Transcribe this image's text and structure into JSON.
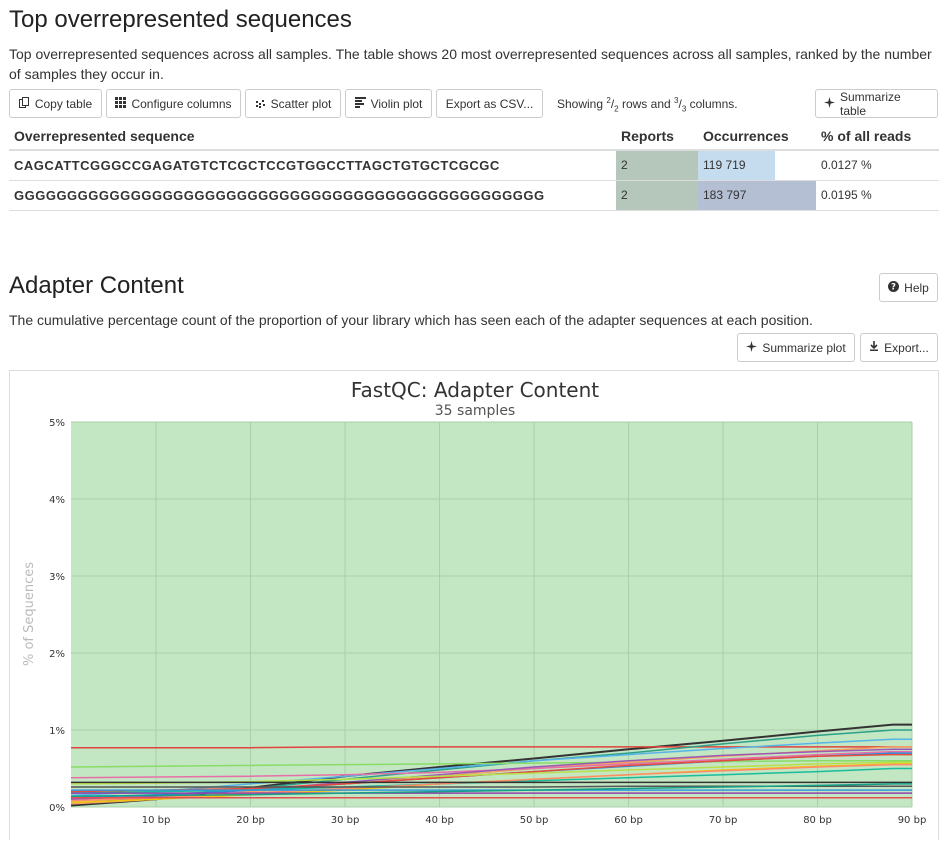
{
  "overrep": {
    "title": "Top overrepresented sequences",
    "description": "Top overrepresented sequences across all samples. The table shows 20 most overrepresented sequences across all samples, ranked by the number of samples they occur in.",
    "buttons": {
      "copy": "Copy table",
      "configure": "Configure columns",
      "scatter": "Scatter plot",
      "violin": "Violin plot",
      "export_csv": "Export as CSV...",
      "summarize": "Summarize table"
    },
    "showing": {
      "prefix": "Showing",
      "rows_num": "2",
      "rows_den": "2",
      "rows_word": "rows and",
      "cols_num": "3",
      "cols_den": "3",
      "cols_word": "columns."
    },
    "columns": [
      "Overrepresented sequence",
      "Reports",
      "Occurrences",
      "% of all reads"
    ],
    "rows": [
      {
        "sequence": "CAGCATTCGGGCCGAGATGTCTCGCTCCGTGGCCTTAGCTGTGCTCGCGC",
        "reports": "2",
        "occurrences": "119 719",
        "occ_fraction": 0.65,
        "pct": "0.0127 %"
      },
      {
        "sequence": "GGGGGGGGGGGGGGGGGGGGGGGGGGGGGGGGGGGGGGGGGGGGGGGGGG",
        "reports": "2",
        "occurrences": "183 797",
        "occ_fraction": 1.0,
        "pct": "0.0195 %"
      }
    ]
  },
  "adapter": {
    "title": "Adapter Content",
    "description": "The cumulative percentage count of the proportion of your library which has seen each of the adapter sequences at each position.",
    "help_label": "Help",
    "summarize_plot_label": "Summarize plot",
    "export_label": "Export..."
  },
  "icons": {
    "copy": "copy-icon",
    "configure": "grid-icon",
    "scatter": "scatter-icon",
    "violin": "bar-chart-icon",
    "summarize": "sparkle-icon",
    "help": "question-circle-icon",
    "export": "download-icon"
  },
  "chart_data": {
    "type": "line",
    "title": "FastQC: Adapter Content",
    "subtitle": "35 samples",
    "xlabel": "",
    "ylabel": "% of Sequences",
    "xlim": [
      1,
      90
    ],
    "ylim": [
      0,
      5
    ],
    "x_ticks": [
      "10 bp",
      "20 bp",
      "30 bp",
      "40 bp",
      "50 bp",
      "60 bp",
      "70 bp",
      "80 bp",
      "90 bp"
    ],
    "y_ticks": [
      "0%",
      "1%",
      "2%",
      "3%",
      "4%",
      "5%"
    ],
    "background_color": "#c3e6c3",
    "grid": true,
    "x": [
      1,
      10,
      20,
      30,
      40,
      50,
      60,
      70,
      80,
      88,
      90
    ],
    "series": [
      {
        "color": "#333333",
        "values": [
          0.02,
          0.1,
          0.25,
          0.4,
          0.52,
          0.63,
          0.75,
          0.86,
          0.98,
          1.07,
          1.07
        ]
      },
      {
        "color": "#e0443d",
        "values": [
          0.77,
          0.77,
          0.77,
          0.78,
          0.78,
          0.78,
          0.78,
          0.78,
          0.78,
          0.78,
          0.78
        ]
      },
      {
        "color": "#2ca089",
        "values": [
          0.05,
          0.12,
          0.24,
          0.36,
          0.48,
          0.6,
          0.7,
          0.82,
          0.93,
          1.0,
          1.0
        ]
      },
      {
        "color": "#56b4e9",
        "values": [
          0.15,
          0.2,
          0.3,
          0.4,
          0.5,
          0.6,
          0.68,
          0.76,
          0.83,
          0.88,
          0.88
        ]
      },
      {
        "color": "#88dd66",
        "values": [
          0.52,
          0.53,
          0.54,
          0.55,
          0.56,
          0.57,
          0.58,
          0.59,
          0.6,
          0.6,
          0.6
        ]
      },
      {
        "color": "#f4a261",
        "values": [
          0.04,
          0.1,
          0.2,
          0.3,
          0.4,
          0.5,
          0.58,
          0.66,
          0.73,
          0.78,
          0.78
        ]
      },
      {
        "color": "#e76fa8",
        "values": [
          0.38,
          0.39,
          0.4,
          0.42,
          0.45,
          0.5,
          0.56,
          0.62,
          0.68,
          0.72,
          0.72
        ]
      },
      {
        "color": "#9b59b6",
        "values": [
          0.1,
          0.14,
          0.22,
          0.32,
          0.42,
          0.52,
          0.6,
          0.67,
          0.72,
          0.75,
          0.75
        ]
      },
      {
        "color": "#2e86de",
        "values": [
          0.12,
          0.16,
          0.22,
          0.3,
          0.38,
          0.46,
          0.53,
          0.6,
          0.66,
          0.7,
          0.7
        ]
      },
      {
        "color": "#e74c3c",
        "values": [
          0.2,
          0.22,
          0.24,
          0.3,
          0.38,
          0.46,
          0.54,
          0.6,
          0.66,
          0.68,
          0.68
        ]
      },
      {
        "color": "#b8e04a",
        "values": [
          0.3,
          0.31,
          0.33,
          0.36,
          0.4,
          0.44,
          0.48,
          0.52,
          0.56,
          0.58,
          0.58
        ]
      },
      {
        "color": "#f1c40f",
        "values": [
          0.06,
          0.1,
          0.16,
          0.22,
          0.3,
          0.36,
          0.42,
          0.48,
          0.53,
          0.56,
          0.56
        ]
      },
      {
        "color": "#1abc9c",
        "values": [
          0.18,
          0.2,
          0.22,
          0.26,
          0.3,
          0.34,
          0.38,
          0.42,
          0.46,
          0.5,
          0.5
        ]
      },
      {
        "color": "#ff8c69",
        "values": [
          0.08,
          0.12,
          0.18,
          0.24,
          0.3,
          0.36,
          0.42,
          0.47,
          0.52,
          0.55,
          0.55
        ]
      },
      {
        "color": "#333333",
        "values": [
          0.32,
          0.32,
          0.32,
          0.32,
          0.32,
          0.32,
          0.32,
          0.32,
          0.32,
          0.32,
          0.32
        ]
      },
      {
        "color": "#555555",
        "values": [
          0.26,
          0.26,
          0.26,
          0.26,
          0.26,
          0.26,
          0.27,
          0.27,
          0.27,
          0.27,
          0.27
        ]
      },
      {
        "color": "#3498db",
        "values": [
          0.22,
          0.22,
          0.22,
          0.22,
          0.22,
          0.22,
          0.22,
          0.22,
          0.22,
          0.22,
          0.22
        ]
      },
      {
        "color": "#e05050",
        "values": [
          0.12,
          0.12,
          0.12,
          0.12,
          0.12,
          0.12,
          0.12,
          0.12,
          0.12,
          0.12,
          0.12
        ]
      },
      {
        "color": "#8e44ad",
        "values": [
          0.18,
          0.18,
          0.18,
          0.18,
          0.18,
          0.18,
          0.18,
          0.18,
          0.18,
          0.18,
          0.18
        ]
      },
      {
        "color": "#16a085",
        "values": [
          0.14,
          0.15,
          0.16,
          0.18,
          0.2,
          0.22,
          0.24,
          0.26,
          0.28,
          0.3,
          0.3
        ]
      }
    ]
  }
}
